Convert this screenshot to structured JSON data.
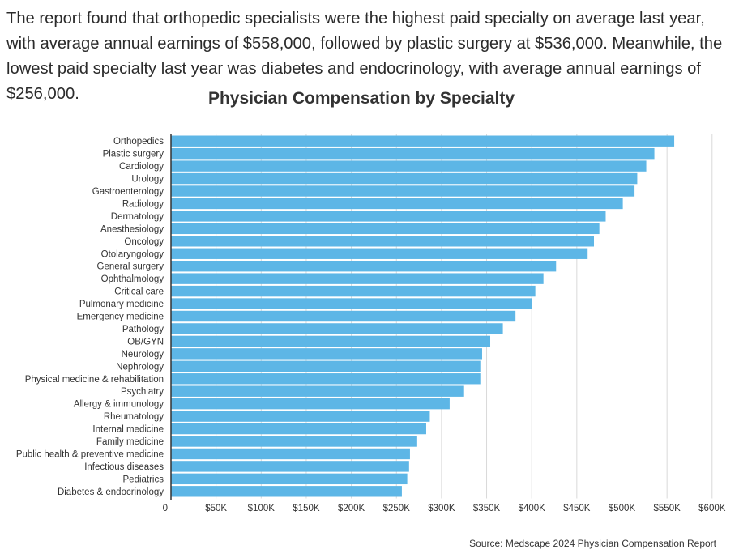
{
  "intro_text": "The report found that orthopedic specialists were the highest paid specialty on average last year, with average annual earnings of $558,000, followed by plastic surgery at $536,000. Meanwhile, the lowest paid specialty last year was diabetes and endocrinology, with average annual earnings of $256,000.",
  "source": "Source: Medscape 2024 Physician Compensation Report",
  "colors": {
    "bar": "#5db6e6",
    "grid": "#d9d9d9",
    "axis": "#333333"
  },
  "chart_data": {
    "type": "bar",
    "orientation": "horizontal",
    "title": "Physician Compensation by Specialty",
    "xlabel": "",
    "ylabel": "",
    "xlim": [
      0,
      600000
    ],
    "grid": true,
    "x_ticks": [
      {
        "value": 0,
        "label": "0"
      },
      {
        "value": 50000,
        "label": "$50K"
      },
      {
        "value": 100000,
        "label": "$100K"
      },
      {
        "value": 150000,
        "label": "$150K"
      },
      {
        "value": 200000,
        "label": "$200K"
      },
      {
        "value": 250000,
        "label": "$250K"
      },
      {
        "value": 300000,
        "label": "$300K"
      },
      {
        "value": 350000,
        "label": "$350K"
      },
      {
        "value": 400000,
        "label": "$400K"
      },
      {
        "value": 450000,
        "label": "$450K"
      },
      {
        "value": 500000,
        "label": "$500K"
      },
      {
        "value": 550000,
        "label": "$550K"
      },
      {
        "value": 600000,
        "label": "$600K"
      }
    ],
    "categories": [
      "Orthopedics",
      "Plastic surgery",
      "Cardiology",
      "Urology",
      "Gastroenterology",
      "Radiology",
      "Dermatology",
      "Anesthesiology",
      "Oncology",
      "Otolaryngology",
      "General surgery",
      "Ophthalmology",
      "Critical care",
      "Pulmonary medicine",
      "Emergency medicine",
      "Pathology",
      "OB/GYN",
      "Neurology",
      "Nephrology",
      "Physical medicine & rehabilitation",
      "Psychiatry",
      "Allergy & immunology",
      "Rheumatology",
      "Internal medicine",
      "Family medicine",
      "Public health & preventive medicine",
      "Infectious diseases",
      "Pediatrics",
      "Diabetes & endocrinology"
    ],
    "values": [
      558000,
      536000,
      527000,
      517000,
      514000,
      501000,
      482000,
      475000,
      469000,
      462000,
      427000,
      413000,
      404000,
      400000,
      382000,
      368000,
      354000,
      345000,
      343000,
      343000,
      325000,
      309000,
      287000,
      283000,
      273000,
      265000,
      264000,
      262000,
      256000
    ]
  }
}
